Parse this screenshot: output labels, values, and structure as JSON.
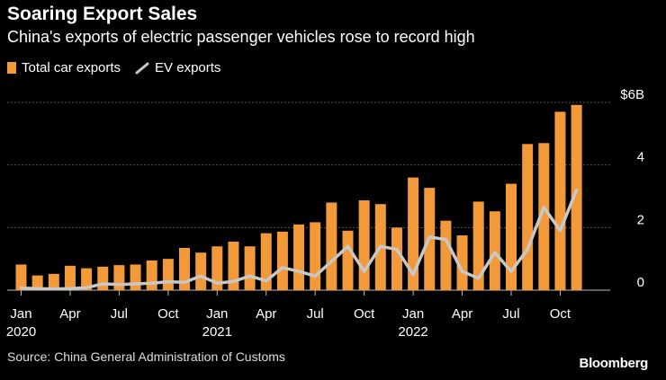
{
  "title": "Soaring Export Sales",
  "subtitle": "China's exports of electric passenger vehicles rose to record high",
  "legend": {
    "bars": "Total car exports",
    "line": "EV exports"
  },
  "source": "Source: China General Administration of Customs",
  "brand": "Bloomberg",
  "colors": {
    "bar": "#f2993a",
    "line": "#c8c8c8",
    "grid": "#555555"
  },
  "chart_data": {
    "type": "bar",
    "title": "Soaring Export Sales",
    "subtitle": "China's exports of electric passenger vehicles rose to record high",
    "ylabel": "",
    "ylim": [
      0,
      6
    ],
    "yticks": [
      {
        "value": 0,
        "label": "0"
      },
      {
        "value": 2,
        "label": "2"
      },
      {
        "value": 4,
        "label": "4"
      },
      {
        "value": 6,
        "label": "$6B"
      }
    ],
    "categories": [
      "2020-01",
      "2020-02",
      "2020-03",
      "2020-04",
      "2020-05",
      "2020-06",
      "2020-07",
      "2020-08",
      "2020-09",
      "2020-10",
      "2020-11",
      "2020-12",
      "2021-01",
      "2021-02",
      "2021-03",
      "2021-04",
      "2021-05",
      "2021-06",
      "2021-07",
      "2021-08",
      "2021-09",
      "2021-10",
      "2021-11",
      "2021-12",
      "2022-01",
      "2022-02",
      "2022-03",
      "2022-04",
      "2022-05",
      "2022-06",
      "2022-07",
      "2022-08",
      "2022-09",
      "2022-10",
      "2022-11"
    ],
    "xticks": [
      {
        "index": 0,
        "label": "Jan",
        "year": "2020"
      },
      {
        "index": 3,
        "label": "Apr"
      },
      {
        "index": 6,
        "label": "Jul"
      },
      {
        "index": 9,
        "label": "Oct"
      },
      {
        "index": 12,
        "label": "Jan",
        "year": "2021"
      },
      {
        "index": 15,
        "label": "Apr"
      },
      {
        "index": 18,
        "label": "Jul"
      },
      {
        "index": 21,
        "label": "Oct"
      },
      {
        "index": 24,
        "label": "Jan",
        "year": "2022"
      },
      {
        "index": 27,
        "label": "Apr"
      },
      {
        "index": 30,
        "label": "Jul"
      },
      {
        "index": 33,
        "label": "Oct"
      }
    ],
    "series": [
      {
        "name": "Total car exports",
        "type": "bar",
        "values": [
          0.82,
          0.47,
          0.52,
          0.78,
          0.7,
          0.75,
          0.8,
          0.82,
          0.95,
          1.0,
          1.35,
          1.2,
          1.4,
          1.55,
          1.4,
          1.82,
          1.87,
          2.1,
          2.17,
          2.8,
          1.9,
          2.87,
          2.75,
          2.0,
          3.6,
          3.27,
          2.22,
          1.75,
          2.83,
          2.52,
          3.4,
          4.67,
          4.7,
          5.7,
          5.92
        ]
      },
      {
        "name": "EV exports",
        "type": "line",
        "values": [
          0.07,
          0.05,
          0.04,
          0.05,
          0.08,
          0.2,
          0.18,
          0.2,
          0.22,
          0.27,
          0.25,
          0.45,
          0.22,
          0.28,
          0.45,
          0.3,
          0.72,
          0.6,
          0.45,
          0.92,
          1.4,
          0.6,
          1.4,
          1.3,
          0.5,
          1.7,
          1.62,
          0.6,
          0.38,
          1.2,
          0.6,
          1.3,
          2.65,
          1.9,
          3.2
        ]
      }
    ]
  }
}
